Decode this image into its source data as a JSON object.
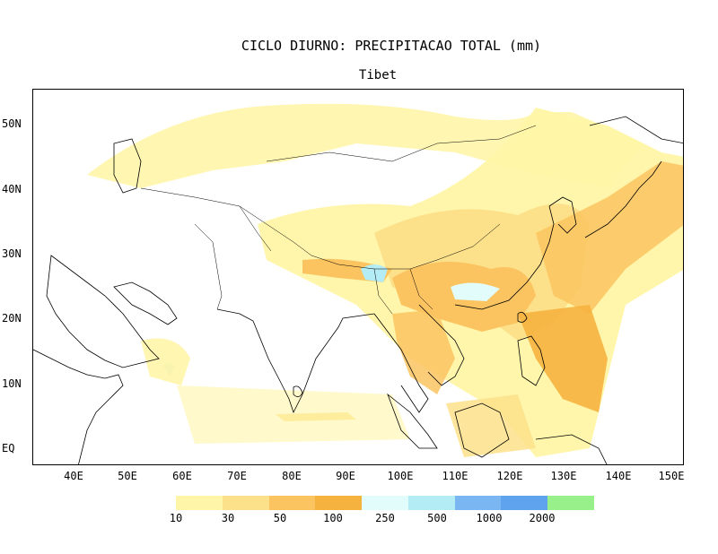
{
  "title": "CICLO DIURNO: PRECIPITACAO TOTAL (mm)",
  "subtitle": "Tibet",
  "lat_labels": [
    "50N",
    "40N",
    "30N",
    "20N",
    "10N",
    "EQ"
  ],
  "lon_labels": [
    "40E",
    "50E",
    "60E",
    "70E",
    "80E",
    "90E",
    "100E",
    "110E",
    "120E",
    "130E",
    "140E",
    "150E"
  ],
  "colorbar": {
    "labels": [
      "10",
      "30",
      "50",
      "100",
      "250",
      "500",
      "1000",
      "2000"
    ],
    "colors": [
      "#fff5a8",
      "#fde18a",
      "#fbc460",
      "#f6b23f",
      "#e2fcfc",
      "#b4ecf6",
      "#7ab6f2",
      "#5fa2ee",
      "#98f08a"
    ]
  },
  "chart_data": {
    "type": "heatmap",
    "title": "CICLO DIURNO: PRECIPITACAO TOTAL (mm)",
    "subtitle": "Tibet",
    "lon_range": [
      33,
      153
    ],
    "lat_range": [
      -3,
      55
    ],
    "levels": [
      10,
      30,
      50,
      100,
      250,
      500,
      1000,
      2000
    ]
  }
}
